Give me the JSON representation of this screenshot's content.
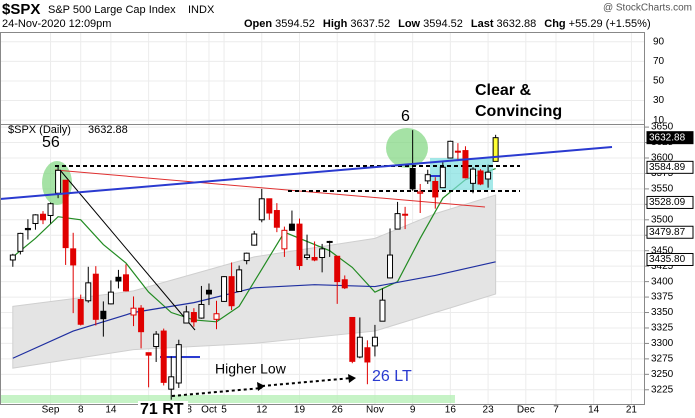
{
  "chart_data": {
    "type": "candlestick",
    "symbol": "$SPX",
    "subtitle": "S&P 500 Large Cap Index",
    "exchange": "INDX",
    "source": "@ StockCharts.com",
    "date": "24-Nov-2020 12:09pm",
    "quote": [
      {
        "label": "Open",
        "value": 3594.52
      },
      {
        "label": "High",
        "value": 3637.52
      },
      {
        "label": "Low",
        "value": 3594.52
      },
      {
        "label": "Last",
        "value": 3632.88
      },
      {
        "label": "Chg",
        "value": "+55.29 (+1.55%)"
      }
    ],
    "legend": "$SPX (Daily)",
    "open": [
      3435,
      3449,
      3486,
      3494,
      3509,
      3507,
      3543,
      3564,
      3453,
      3371,
      3369,
      3412,
      3352,
      3364,
      3407,
      3411,
      3346,
      3357,
      3285,
      3295,
      3320,
      3226,
      3236,
      3333,
      3350,
      3341,
      3386,
      3339,
      3368,
      3408,
      3384,
      3434,
      3459,
      3500,
      3534,
      3515,
      3453,
      3493,
      3493,
      3439,
      3439,
      3439,
      3464,
      3441,
      3403,
      3342,
      3278,
      3293,
      3296,
      3336,
      3406,
      3485,
      3509,
      3583,
      3543,
      3563,
      3562,
      3552,
      3600,
      3611,
      3612,
      3559,
      3579,
      3566,
      3594.52
    ],
    "high": [
      3445,
      3479,
      3501,
      3509,
      3514,
      3528,
      3588,
      3564,
      3479,
      3379,
      3424,
      3425,
      3368,
      3402,
      3419,
      3428,
      3376,
      3362,
      3285,
      3320,
      3324,
      3279,
      3306,
      3361,
      3357,
      3393,
      3397,
      3369,
      3409,
      3431,
      3426,
      3447,
      3482,
      3550,
      3534,
      3527,
      3489,
      3515,
      3502,
      3476,
      3465,
      3461,
      3466,
      3441,
      3410,
      3342,
      3342,
      3305,
      3330,
      3389,
      3486,
      3529,
      3521,
      3645,
      3558,
      3581,
      3569,
      3593,
      3628,
      3624,
      3619,
      3585,
      3582,
      3589,
      3637.52
    ],
    "low": [
      3424,
      3444,
      3468,
      3484,
      3493,
      3494,
      3535,
      3427,
      3349,
      3329,
      3366,
      3329,
      3311,
      3363,
      3389,
      3384,
      3328,
      3292,
      3229,
      3270,
      3232,
      3209,
      3228,
      3333,
      3327,
      3340,
      3362,
      3323,
      3367,
      3354,
      3384,
      3428,
      3458,
      3496,
      3500,
      3480,
      3440,
      3483,
      3419,
      3435,
      3433,
      3415,
      3440,
      3364,
      3388,
      3268,
      3276,
      3234,
      3279,
      3336,
      3405,
      3485,
      3485,
      3547,
      3511,
      3558,
      3518,
      3552,
      3600,
      3595,
      3567,
      3543,
      3556,
      3552,
      3594.52
    ],
    "close": [
      3443,
      3478,
      3484,
      3508,
      3500,
      3526,
      3580,
      3455,
      3427,
      3331,
      3398,
      3339,
      3340,
      3383,
      3401,
      3385,
      3357,
      3319,
      3281,
      3315,
      3237,
      3246,
      3298,
      3351,
      3335,
      3363,
      3380,
      3348,
      3408,
      3361,
      3419,
      3446,
      3477,
      3534,
      3511,
      3488,
      3483,
      3483,
      3426,
      3443,
      3435,
      3453,
      3465,
      3400,
      3390,
      3271,
      3310,
      3270,
      3310,
      3370,
      3443,
      3510,
      3509,
      3550,
      3545,
      3573,
      3537,
      3585,
      3627,
      3610,
      3568,
      3582,
      3558,
      3577,
      3632.88
    ],
    "up_color": "#000000",
    "down_color": "#e00000",
    "last_bar_color": "#ffff33",
    "overlays": [
      {
        "color": "#228b22",
        "x": [
          0,
          3,
          6,
          9,
          12,
          15,
          18,
          21,
          24,
          27,
          30,
          33,
          36,
          39,
          42,
          45,
          48,
          51,
          54,
          57,
          60,
          64
        ],
        "values": [
          3440,
          3470,
          3505,
          3500,
          3460,
          3430,
          3383,
          3350,
          3338,
          3335,
          3360,
          3420,
          3480,
          3465,
          3450,
          3423,
          3383,
          3400,
          3470,
          3535,
          3565,
          3583
        ]
      },
      {
        "color": "#1f2fa0",
        "x": [
          0,
          8,
          16,
          24,
          32,
          40,
          48,
          56,
          64
        ],
        "values": [
          3276,
          3320,
          3350,
          3366,
          3390,
          3395,
          3392,
          3410,
          3432
        ]
      }
    ],
    "band": {
      "color": "#e4e4e4",
      "x": [
        0,
        16,
        32,
        48,
        56,
        64
      ],
      "upper": [
        3360,
        3385,
        3440,
        3470,
        3510,
        3540
      ],
      "lower": [
        3260,
        3290,
        3300,
        3320,
        3350,
        3380
      ]
    },
    "xlim": [
      -1.7,
      83.8
    ],
    "ylim": [
      3202,
      3655
    ],
    "yticks": [
      3650,
      3625,
      3600,
      3575,
      3550,
      3525,
      3500,
      3475,
      3450,
      3425,
      3400,
      3375,
      3350,
      3325,
      3300,
      3275,
      3250,
      3225
    ],
    "xticks": [
      {
        "value": 5,
        "label": "Sep"
      },
      {
        "value": 9,
        "label": "8"
      },
      {
        "value": 13,
        "label": "14"
      },
      {
        "value": 18,
        "label": "21"
      },
      {
        "value": 23,
        "label": "28"
      },
      {
        "value": 26,
        "label": "Oct"
      },
      {
        "value": 28,
        "label": "5"
      },
      {
        "value": 33,
        "label": "12"
      },
      {
        "value": 38,
        "label": "19"
      },
      {
        "value": 43,
        "label": "26"
      },
      {
        "value": 48,
        "label": "Nov"
      },
      {
        "value": 53,
        "label": "9"
      },
      {
        "value": 58,
        "label": "16"
      },
      {
        "value": 63,
        "label": "23"
      },
      {
        "value": 68,
        "label": "Dec"
      },
      {
        "value": 72,
        "label": "7"
      },
      {
        "value": 77,
        "label": "14"
      },
      {
        "value": 82,
        "label": "21"
      }
    ],
    "top_ylim": [
      4,
      100
    ],
    "top_yticks": [
      90,
      70,
      50,
      30,
      10
    ],
    "price_labels": [
      {
        "value": 3632.88,
        "label": "3632.88"
      },
      {
        "value": 3584.89,
        "label": "3584.89"
      },
      {
        "value": 3528.09,
        "label": "3528.09"
      },
      {
        "value": 3479.87,
        "label": "3479.87"
      },
      {
        "value": 3435.8,
        "label": "3435.80"
      }
    ],
    "annotations": [
      "56",
      "6",
      "Clear &",
      "Convincing",
      "Higher Low",
      "26 LT",
      "71 RT"
    ],
    "grid": true
  }
}
